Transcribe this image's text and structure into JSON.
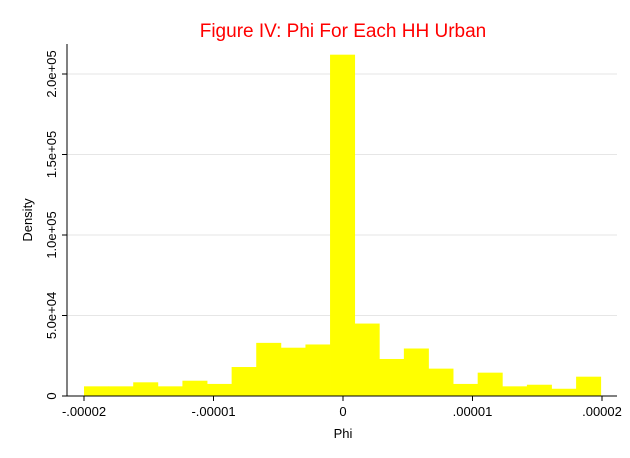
{
  "chart_data": {
    "type": "bar",
    "title": "Figure IV: Phi For Each HH Urban",
    "xlabel": "Phi",
    "ylabel": "Density",
    "x_ticks": [
      {
        "value": -2e-05,
        "label": "-.00002"
      },
      {
        "value": -1e-05,
        "label": "-.00001"
      },
      {
        "value": 0,
        "label": "0"
      },
      {
        "value": 1e-05,
        "label": ".00001"
      },
      {
        "value": 2e-05,
        "label": ".00002"
      }
    ],
    "y_ticks": [
      {
        "value": 0,
        "label": "0"
      },
      {
        "value": 50000,
        "label": "5.0e+04"
      },
      {
        "value": 100000,
        "label": "1.0e+05"
      },
      {
        "value": 150000,
        "label": "1.5e+05"
      },
      {
        "value": 200000,
        "label": "2.0e+05"
      }
    ],
    "xlim": [
      -2e-05,
      2e-05
    ],
    "ylim": [
      0,
      200000
    ],
    "grid": true,
    "bar_color": "#ffff00",
    "title_color": "#ff0000",
    "bin_width": 1.9e-06,
    "bins": [
      {
        "x": -2e-05,
        "density": 6000
      },
      {
        "x": -1.81e-05,
        "density": 6000
      },
      {
        "x": -1.62e-05,
        "density": 8500
      },
      {
        "x": -1.43e-05,
        "density": 6000
      },
      {
        "x": -1.24e-05,
        "density": 9500
      },
      {
        "x": -1.05e-05,
        "density": 7500
      },
      {
        "x": -8.6e-06,
        "density": 18000
      },
      {
        "x": -6.7e-06,
        "density": 33000
      },
      {
        "x": -4.8e-06,
        "density": 30000
      },
      {
        "x": -2.9e-06,
        "density": 32000
      },
      {
        "x": -1e-06,
        "density": 212000
      },
      {
        "x": 9e-07,
        "density": 45000
      },
      {
        "x": 2.8e-06,
        "density": 23000
      },
      {
        "x": 4.7e-06,
        "density": 29500
      },
      {
        "x": 6.6e-06,
        "density": 17000
      },
      {
        "x": 8.5e-06,
        "density": 7500
      },
      {
        "x": 1.04e-05,
        "density": 14500
      },
      {
        "x": 1.23e-05,
        "density": 6000
      },
      {
        "x": 1.42e-05,
        "density": 7000
      },
      {
        "x": 1.61e-05,
        "density": 4500
      },
      {
        "x": 1.8e-05,
        "density": 12000
      }
    ]
  }
}
